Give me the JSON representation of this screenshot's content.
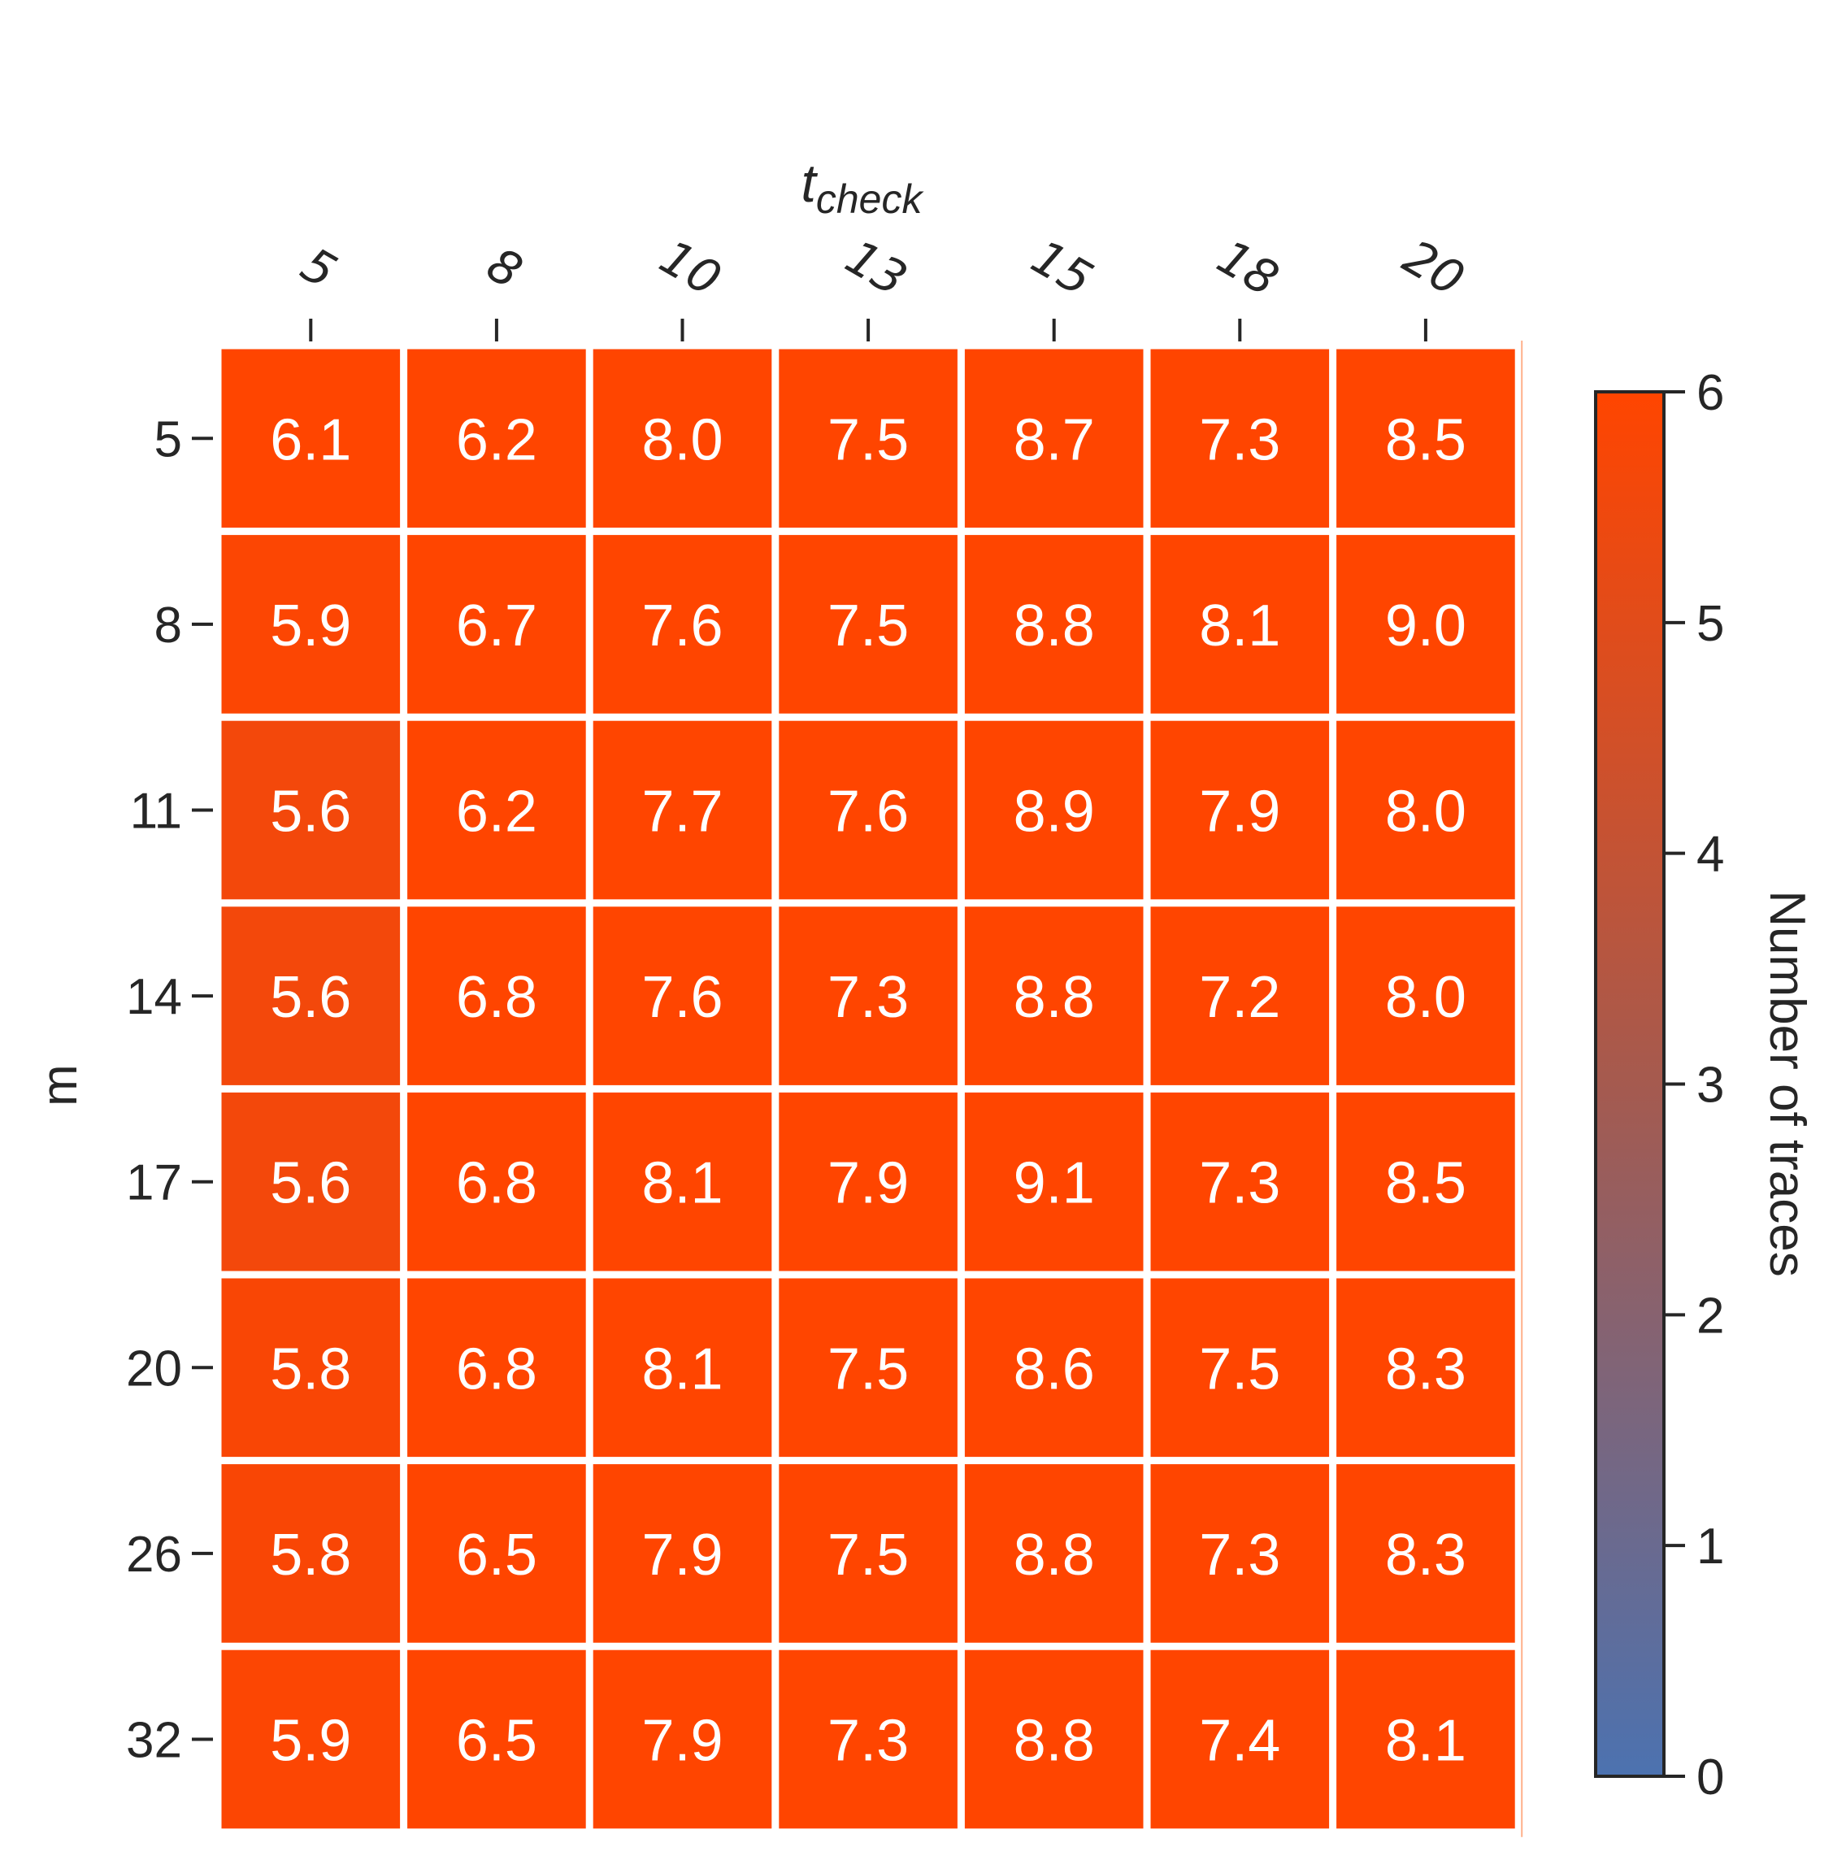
{
  "chart_data": {
    "type": "heatmap",
    "title": "",
    "xlabel": "t",
    "xlabel_subscript": "check",
    "ylabel": "m",
    "x_categories": [
      "5",
      "8",
      "10",
      "13",
      "15",
      "18",
      "20"
    ],
    "y_categories": [
      "5",
      "8",
      "11",
      "14",
      "17",
      "20",
      "26",
      "32"
    ],
    "values": [
      [
        6.1,
        6.2,
        8.0,
        7.5,
        8.7,
        7.3,
        8.5
      ],
      [
        5.9,
        6.7,
        7.6,
        7.5,
        8.8,
        8.1,
        9.0
      ],
      [
        5.6,
        6.2,
        7.7,
        7.6,
        8.9,
        7.9,
        8.0
      ],
      [
        5.6,
        6.8,
        7.6,
        7.3,
        8.8,
        7.2,
        8.0
      ],
      [
        5.6,
        6.8,
        8.1,
        7.9,
        9.1,
        7.3,
        8.5
      ],
      [
        5.8,
        6.8,
        8.1,
        7.5,
        8.6,
        7.5,
        8.3
      ],
      [
        5.8,
        6.5,
        7.9,
        7.5,
        8.8,
        7.3,
        8.3
      ],
      [
        5.9,
        6.5,
        7.9,
        7.3,
        8.8,
        7.4,
        8.1
      ]
    ],
    "value_format": "0.1f",
    "colorbar": {
      "label": "Number of traces",
      "vmin": 0,
      "vmax": 6,
      "ticks": [
        "0",
        "1",
        "2",
        "3",
        "4",
        "5",
        "6"
      ],
      "color_low": "#4c72b0",
      "color_mid": "#a55a4f",
      "color_high": "#ff4500"
    },
    "x_axis_position": "top",
    "x_tick_rotation_deg": 30,
    "grid": false,
    "cell_separator_color": "#ffffff"
  }
}
